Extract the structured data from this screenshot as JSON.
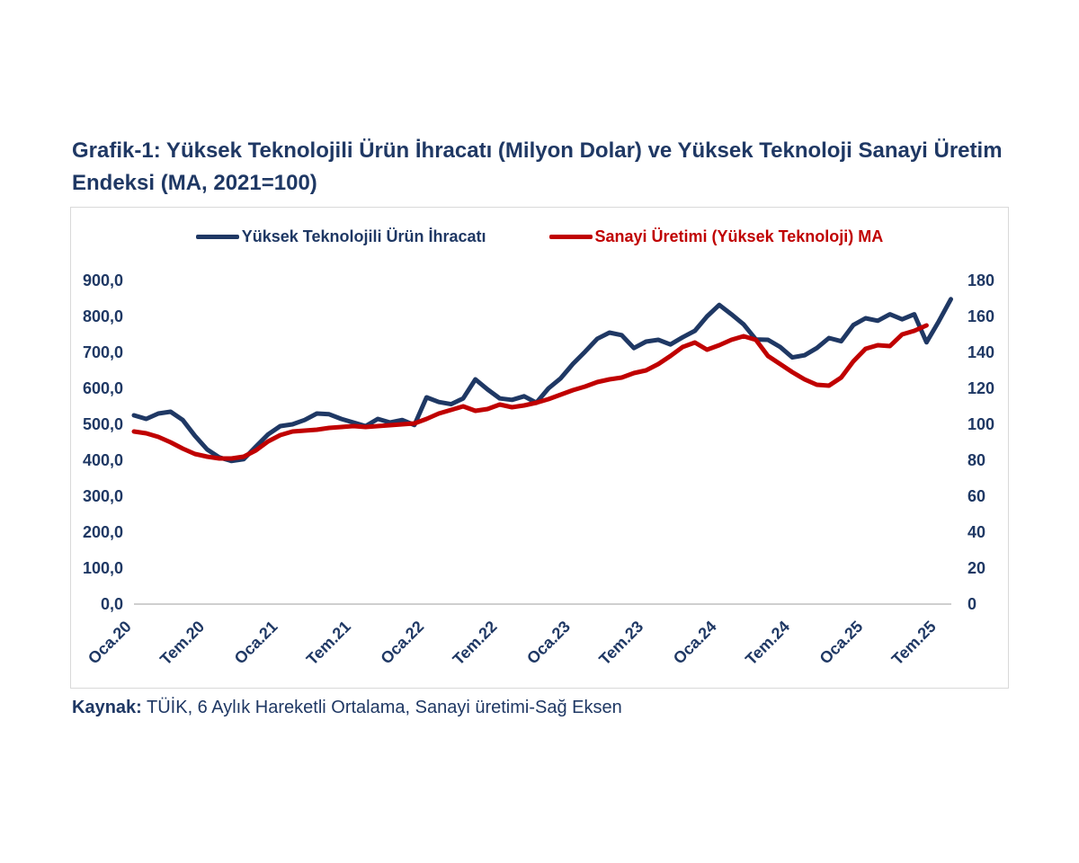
{
  "page": {
    "title_line1": "Grafik-1: Yüksek Teknolojili Ürün İhracatı (Milyon Dolar) ve Yüksek Teknoloji Sanayi Üretim",
    "title_line2": "Endeksi (MA, 2021=100)",
    "source_label": "Kaynak:",
    "source_text": " TÜİK, 6 Aylık Hareketli Ortalama, Sanayi üretimi-Sağ Eksen"
  },
  "colors": {
    "navy": "#1f3864",
    "red": "#c00000",
    "frame_border": "#d9d9d9",
    "axis_line": "#bfbfbf"
  },
  "chart_data": {
    "type": "line",
    "title": "Grafik-1: Yüksek Teknolojili Ürün İhracatı (Milyon Dolar) ve Yüksek Teknoloji Sanayi Üretim Endeksi (MA, 2021=100)",
    "x_unit": "months, Jan 2020 onward, one point per month",
    "x_tick_labels": [
      "Oca.20",
      "Tem.20",
      "Oca.21",
      "Tem.21",
      "Oca.22",
      "Tem.22",
      "Oca.23",
      "Tem.23",
      "Oca.24",
      "Tem.24",
      "Oca.25",
      "Tem.25"
    ],
    "x_tick_month_indices": [
      0,
      6,
      12,
      18,
      24,
      30,
      36,
      42,
      48,
      54,
      60,
      66
    ],
    "left_axis": {
      "min": 0,
      "max": 900,
      "step": 100,
      "tick_labels": [
        "0,0",
        "100,0",
        "200,0",
        "300,0",
        "400,0",
        "500,0",
        "600,0",
        "700,0",
        "800,0",
        "900,0"
      ]
    },
    "right_axis": {
      "min": 0,
      "max": 180,
      "step": 20,
      "tick_labels": [
        "0",
        "20",
        "40",
        "60",
        "80",
        "100",
        "120",
        "140",
        "160",
        "180"
      ]
    },
    "grid": "off",
    "legend_position": "top",
    "series": [
      {
        "name": "Yüksek Teknolojili Ürün İhracatı",
        "axis": "left",
        "color": "#1f3864",
        "values": [
          525,
          515,
          530,
          535,
          512,
          468,
          430,
          408,
          398,
          403,
          438,
          472,
          495,
          500,
          512,
          530,
          528,
          515,
          505,
          495,
          515,
          505,
          512,
          498,
          575,
          562,
          556,
          572,
          625,
          597,
          572,
          568,
          578,
          560,
          600,
          628,
          668,
          702,
          738,
          755,
          748,
          712,
          730,
          735,
          722,
          742,
          760,
          800,
          832,
          806,
          778,
          736,
          735,
          715,
          686,
          692,
          712,
          740,
          731,
          776,
          795,
          788,
          806,
          792,
          806,
          728,
          786,
          848
        ]
      },
      {
        "name": "Sanayi Üretimi (Yüksek Teknoloji) MA",
        "axis": "right",
        "color": "#c00000",
        "values": [
          96,
          95,
          93,
          90,
          86.5,
          83.5,
          82,
          81,
          81,
          82,
          85.5,
          90.5,
          94,
          96,
          96.5,
          97,
          98,
          98.5,
          99,
          98.5,
          99,
          99.5,
          100,
          100.5,
          103,
          106,
          108,
          110,
          107.5,
          108.5,
          111,
          109.5,
          110.5,
          112,
          114,
          116.5,
          119,
          121,
          123.5,
          125,
          126,
          128.5,
          130,
          133.5,
          138,
          143,
          145.5,
          141.5,
          144,
          147,
          149,
          147,
          138,
          133.5,
          129,
          125,
          122,
          121.5,
          126,
          135,
          142,
          144,
          143.5,
          150,
          152,
          155
        ]
      }
    ]
  }
}
